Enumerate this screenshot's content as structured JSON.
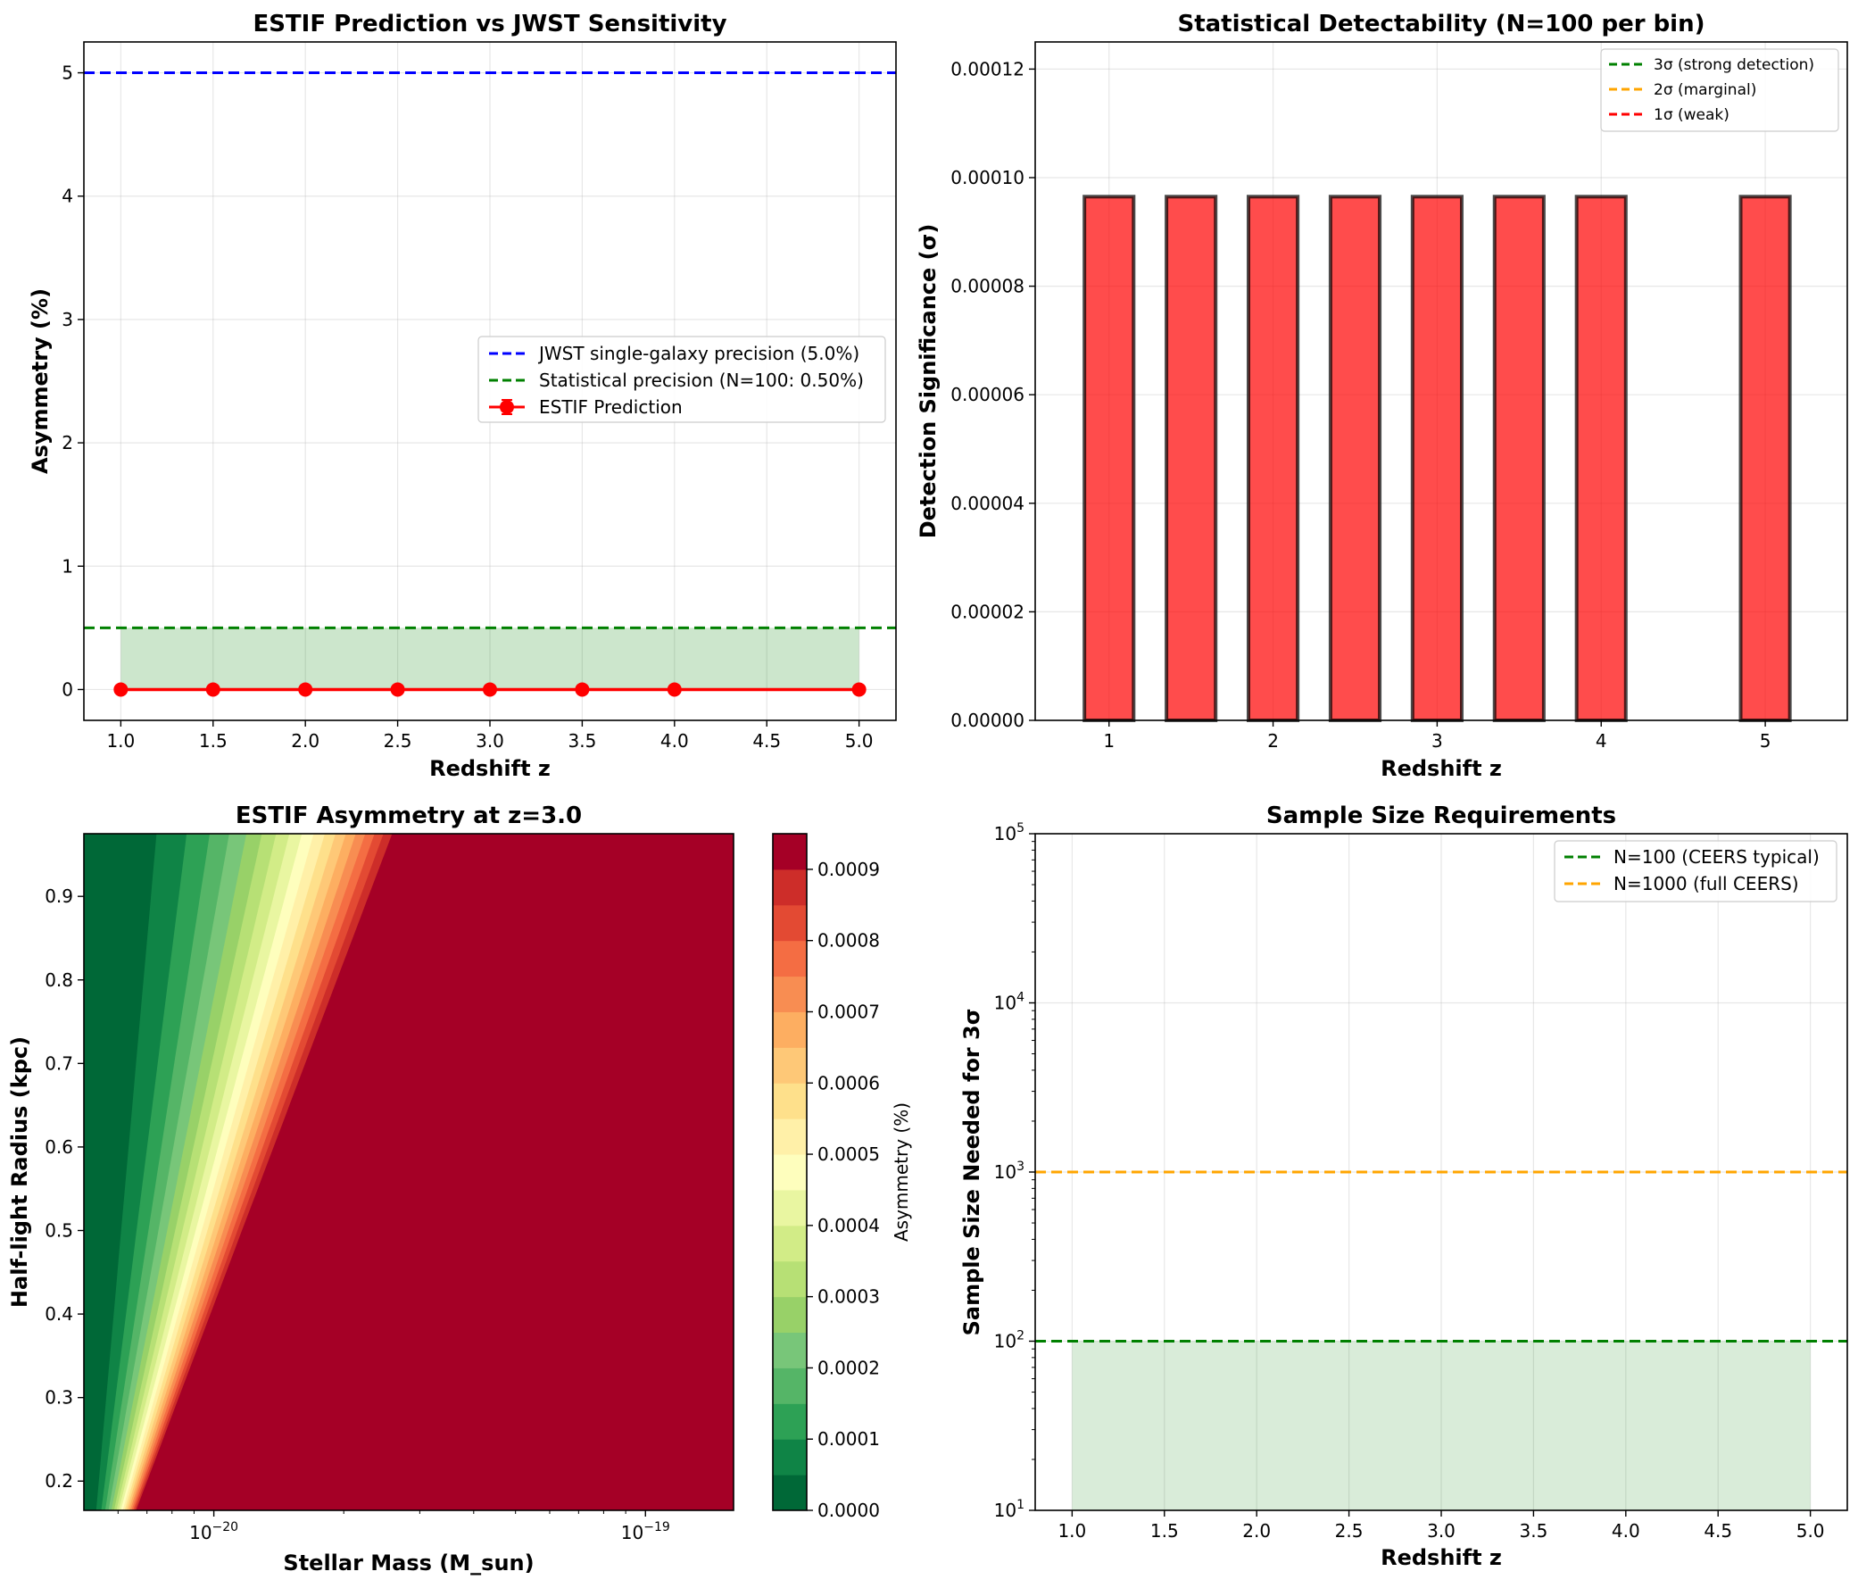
{
  "chart_data": [
    {
      "type": "line",
      "title": "ESTIF Prediction vs JWST Sensitivity",
      "xlabel": "Redshift z",
      "ylabel": "Asymmetry (%)",
      "xlim": [
        0.8,
        5.2
      ],
      "ylim": [
        -0.25,
        5.25
      ],
      "xticks": [
        "1.0",
        "1.5",
        "2.0",
        "2.5",
        "3.0",
        "3.5",
        "4.0",
        "4.5",
        "5.0"
      ],
      "yticks": [
        "0",
        "1",
        "2",
        "3",
        "4",
        "5"
      ],
      "hlines": [
        {
          "name": "JWST single-galaxy precision (5.0%)",
          "y": 5.0,
          "color": "#0000ff",
          "style": "dashed"
        },
        {
          "name": "Statistical precision (N=100: 0.50%)",
          "y": 0.5,
          "color": "#008000",
          "style": "dashed"
        }
      ],
      "shaded_band": {
        "x": [
          1.0,
          5.0
        ],
        "y": [
          0,
          0.5
        ],
        "color": "#008000"
      },
      "series": [
        {
          "name": "ESTIF Prediction",
          "color": "#ff0000",
          "x": [
            1.0,
            1.5,
            2.0,
            2.5,
            3.0,
            3.5,
            4.0,
            5.0
          ],
          "y": [
            0.0001,
            0.0001,
            0.0001,
            0.0001,
            0.0001,
            0.0001,
            0.0001,
            0.0001
          ]
        }
      ],
      "legend_position": "center-right"
    },
    {
      "type": "bar",
      "title": "Statistical Detectability (N=100 per bin)",
      "xlabel": "Redshift z",
      "ylabel": "Detection Significance (σ)",
      "xlim": [
        0.55,
        5.5
      ],
      "ylim": [
        0,
        0.000125
      ],
      "xticks": [
        "1",
        "2",
        "3",
        "4",
        "5"
      ],
      "yticks": [
        "0.00000",
        "0.00002",
        "0.00004",
        "0.00006",
        "0.00008",
        "0.00010",
        "0.00012"
      ],
      "x": [
        1.0,
        1.5,
        2.0,
        2.5,
        3.0,
        3.5,
        4.0,
        5.0
      ],
      "values": [
        9.65e-05,
        9.65e-05,
        9.65e-05,
        9.65e-05,
        9.65e-05,
        9.65e-05,
        9.65e-05,
        9.65e-05
      ],
      "bar_color": "#ff0000",
      "legend": [
        {
          "name": "3σ (strong detection)",
          "color": "#008000"
        },
        {
          "name": "2σ (marginal)",
          "color": "#ffa500"
        },
        {
          "name": "1σ (weak)",
          "color": "#ff0000"
        }
      ],
      "legend_position": "top-right"
    },
    {
      "type": "heatmap",
      "title": "ESTIF Asymmetry at z=3.0",
      "xlabel": "Stellar Mass (M_sun)",
      "ylabel": "Half-light Radius (kpc)",
      "x_scale": "log",
      "xlim": [
        5e-21,
        1.6e-19
      ],
      "ylim": [
        0.165,
        0.975
      ],
      "xticks": [
        {
          "base": "10",
          "exp": "−20"
        },
        {
          "base": "10",
          "exp": "−19"
        }
      ],
      "yticks": [
        "0.2",
        "0.3",
        "0.4",
        "0.5",
        "0.6",
        "0.7",
        "0.8",
        "0.9"
      ],
      "colormap": "RdYlGn_r",
      "colorbar_label": "Asymmetry (%)",
      "colorbar_range": [
        0,
        0.00095
      ],
      "colorbar_ticks": [
        "0.0000",
        "0.0001",
        "0.0002",
        "0.0003",
        "0.0004",
        "0.0005",
        "0.0006",
        "0.0007",
        "0.0008",
        "0.0009"
      ],
      "levels": [
        0,
        5e-05,
        0.0001,
        0.00015,
        0.0002,
        0.00025,
        0.0003,
        0.00035,
        0.0004,
        0.00045,
        0.0005,
        0.00055,
        0.0006,
        0.00065,
        0.0007,
        0.00075,
        0.0008,
        0.00085,
        0.0009,
        0.00095
      ],
      "level_colors": [
        "#006837",
        "#0f8446",
        "#2da155",
        "#55b567",
        "#78c679",
        "#98d168",
        "#b7e075",
        "#d2ec87",
        "#e9f6a1",
        "#fefebd",
        "#fff0a8",
        "#fee08b",
        "#fec877",
        "#fdae61",
        "#f88d52",
        "#f46d43",
        "#e34a33",
        "#cd2d29",
        "#a50026"
      ]
    },
    {
      "type": "line",
      "title": "Sample Size Requirements",
      "xlabel": "Redshift z",
      "ylabel": "Sample Size Needed for 3σ",
      "y_scale": "log",
      "xlim": [
        0.8,
        5.2
      ],
      "ylim": [
        10,
        100000
      ],
      "xticks": [
        "1.0",
        "1.5",
        "2.0",
        "2.5",
        "3.0",
        "3.5",
        "4.0",
        "4.5",
        "5.0"
      ],
      "yticks": [
        {
          "base": "10",
          "exp": "1"
        },
        {
          "base": "10",
          "exp": "2"
        },
        {
          "base": "10",
          "exp": "3"
        },
        {
          "base": "10",
          "exp": "4"
        },
        {
          "base": "10",
          "exp": "5"
        }
      ],
      "hlines": [
        {
          "name": "N=100 (CEERS typical)",
          "y": 100,
          "color": "#008000",
          "style": "dashed"
        },
        {
          "name": "N=1000 (full CEERS)",
          "y": 1000,
          "color": "#ffa500",
          "style": "dashed"
        }
      ],
      "shaded_band": {
        "x": [
          1.0,
          5.0
        ],
        "y": [
          10,
          100
        ],
        "color": "#008000"
      },
      "legend_position": "top-right"
    }
  ]
}
